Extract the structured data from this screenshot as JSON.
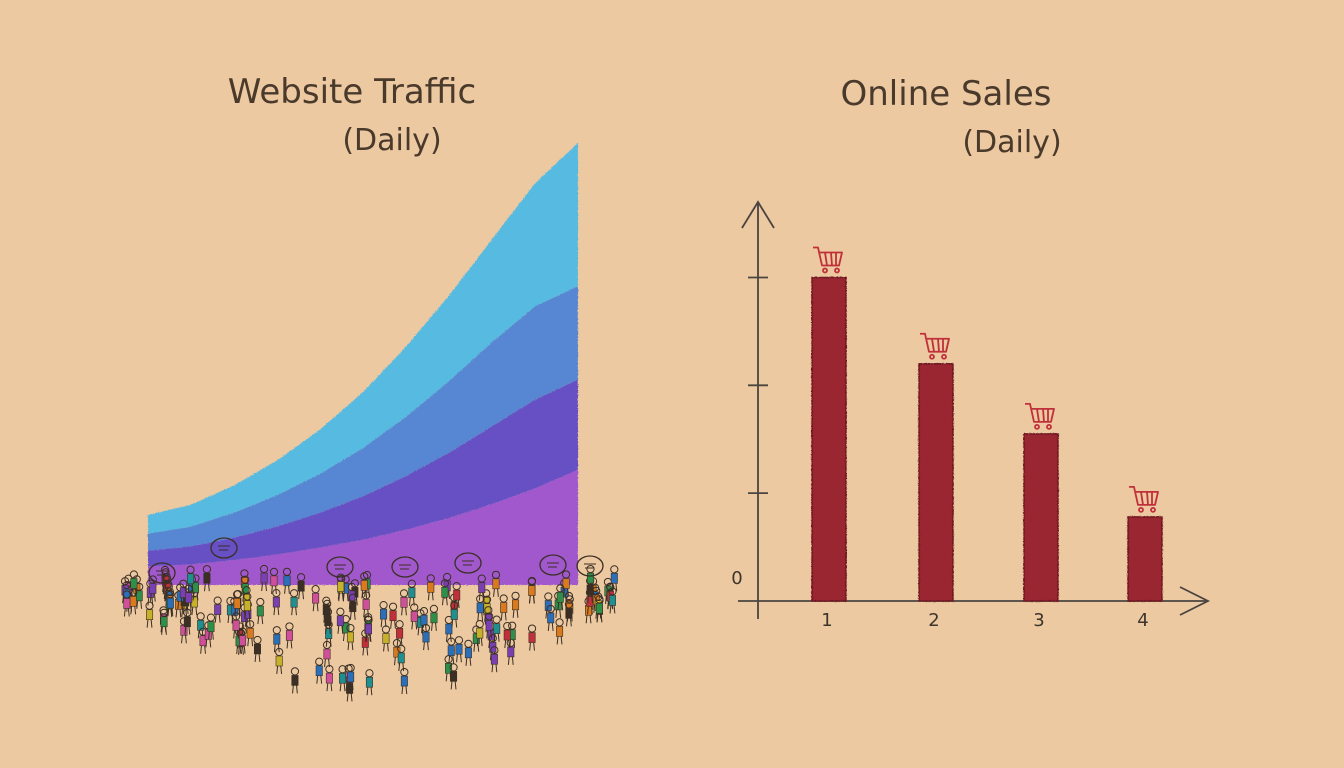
{
  "colors": {
    "background": "#ecc9a0",
    "ink": "#4a3a2c",
    "bar": "#9a2530",
    "cart": "#c0303a",
    "traffic_layers": [
      "#9a4fd0",
      "#5b45c8",
      "#4a80d8",
      "#4ab8e6"
    ]
  },
  "chart_data": [
    {
      "type": "area",
      "title": "Website Traffic",
      "subtitle": "(Daily)",
      "stacked": true,
      "x": [
        0,
        1,
        2,
        3,
        4,
        5,
        6,
        7,
        8,
        9,
        10
      ],
      "series": [
        {
          "values": [
            0.6,
            0.66,
            0.8,
            0.98,
            1.2,
            1.45,
            1.78,
            2.15,
            2.6,
            3.1,
            3.7
          ]
        },
        {
          "values": [
            0.5,
            0.58,
            0.72,
            0.9,
            1.12,
            1.4,
            1.72,
            2.1,
            2.5,
            2.85,
            2.9
          ]
        },
        {
          "values": [
            0.55,
            0.64,
            0.8,
            1.0,
            1.25,
            1.55,
            1.9,
            2.3,
            2.7,
            3.0,
            3.0
          ]
        },
        {
          "values": [
            0.6,
            0.7,
            0.88,
            1.12,
            1.42,
            1.8,
            2.25,
            2.75,
            3.3,
            3.95,
            4.6
          ]
        }
      ],
      "ylim": [
        0,
        15
      ],
      "axes": false,
      "crowd_icon": "crowd-of-people-icon"
    },
    {
      "type": "bar",
      "title": "Online Sales",
      "subtitle": "(Daily)",
      "categories": [
        "1",
        "2",
        "3",
        "4"
      ],
      "values": [
        3.0,
        2.2,
        1.55,
        0.78
      ],
      "y_zero_label": "0",
      "ylim": [
        0,
        3.7
      ],
      "y_ticks": [
        1,
        2,
        3
      ],
      "bar_icon": "shopping-cart-icon",
      "grid": false
    }
  ]
}
